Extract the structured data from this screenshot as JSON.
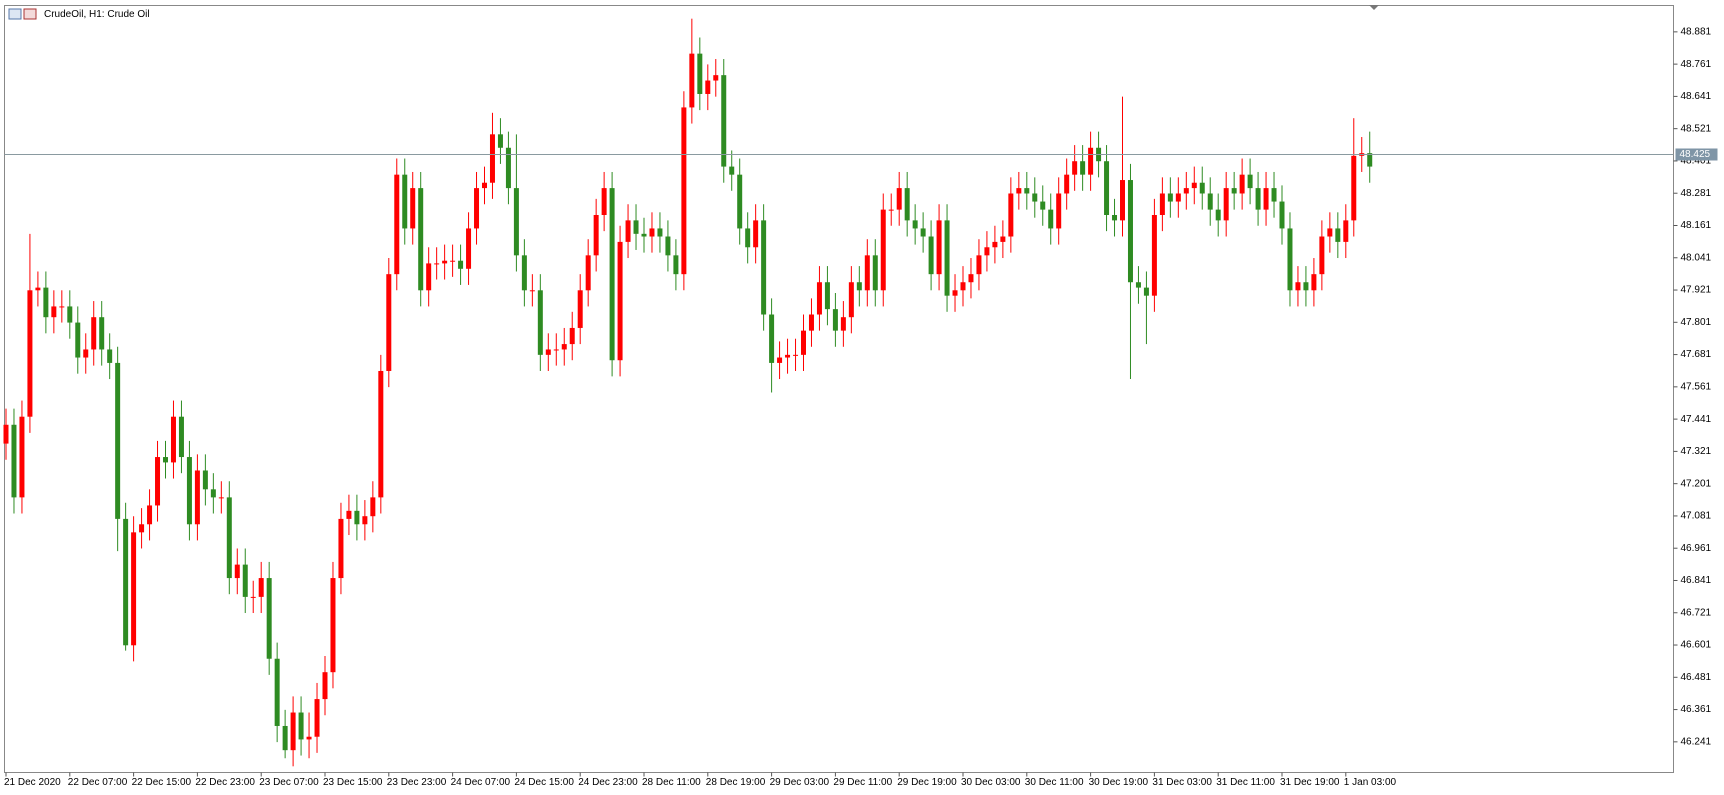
{
  "chart_data": {
    "type": "candlestick",
    "title": "CrudeOil, H1:  Crude Oil",
    "x": [
      "21 Dec 2020",
      null,
      null,
      null,
      null,
      null,
      null,
      null,
      "22 Dec 07:00",
      null,
      null,
      null,
      null,
      null,
      null,
      null,
      "22 Dec 15:00",
      null,
      null,
      null,
      null,
      null,
      null,
      null,
      "22 Dec 23:00",
      null,
      null,
      null,
      null,
      null,
      null,
      null,
      "23 Dec 07:00",
      null,
      null,
      null,
      null,
      null,
      null,
      null,
      "23 Dec 15:00",
      null,
      null,
      null,
      null,
      null,
      null,
      null,
      "23 Dec 23:00",
      null,
      null,
      null,
      null,
      null,
      null,
      null,
      "24 Dec 07:00",
      null,
      null,
      null,
      null,
      null,
      null,
      null,
      "24 Dec 15:00",
      null,
      null,
      null,
      null,
      null,
      null,
      null,
      "24 Dec 23:00",
      null,
      null,
      null,
      null,
      null,
      null,
      null,
      "28 Dec 11:00",
      null,
      null,
      null,
      null,
      null,
      null,
      null,
      "28 Dec 19:00",
      null,
      null,
      null,
      null,
      null,
      null,
      null,
      "29 Dec 03:00",
      null,
      null,
      null,
      null,
      null,
      null,
      null,
      "29 Dec 11:00",
      null,
      null,
      null,
      null,
      null,
      null,
      null,
      "29 Dec 19:00",
      null,
      null,
      null,
      null,
      null,
      null,
      null,
      "30 Dec 03:00",
      null,
      null,
      null,
      null,
      null,
      null,
      null,
      "30 Dec 11:00",
      null,
      null,
      null,
      null,
      null,
      null,
      null,
      "30 Dec 19:00",
      null,
      null,
      null,
      null,
      null,
      null,
      null,
      "31 Dec 03:00",
      null,
      null,
      null,
      null,
      null,
      null,
      null,
      "31 Dec 11:00",
      null,
      null,
      null,
      null,
      null,
      null,
      null,
      "31 Dec 19:00",
      null,
      null,
      null,
      null,
      null,
      null,
      null,
      "1 Jan 03:00",
      null,
      null,
      null
    ],
    "open": [
      47.35,
      47.42,
      47.15,
      47.45,
      47.92,
      47.93,
      47.82,
      47.86,
      47.86,
      47.8,
      47.67,
      47.7,
      47.82,
      47.7,
      47.65,
      47.07,
      46.6,
      47.02,
      47.05,
      47.12,
      47.3,
      47.28,
      47.45,
      47.3,
      47.05,
      47.25,
      47.18,
      47.15,
      47.15,
      46.85,
      46.9,
      46.78,
      46.78,
      46.85,
      46.55,
      46.3,
      46.21,
      46.35,
      46.25,
      46.26,
      46.4,
      46.5,
      46.85,
      47.07,
      47.1,
      47.05,
      47.08,
      47.15,
      47.62,
      47.98,
      48.35,
      48.15,
      48.3,
      47.92,
      48.02,
      48.02,
      48.03,
      48.03,
      48.0,
      48.15,
      48.3,
      48.32,
      48.5,
      48.45,
      48.3,
      48.05,
      47.92,
      47.92,
      47.68,
      47.7,
      47.7,
      47.72,
      47.78,
      47.92,
      48.05,
      48.2,
      48.3,
      47.66,
      48.1,
      48.18,
      48.13,
      48.12,
      48.15,
      48.12,
      48.05,
      47.98,
      48.6,
      48.8,
      48.65,
      48.7,
      48.72,
      48.38,
      48.35,
      48.15,
      48.08,
      48.18,
      47.83,
      47.65,
      47.67,
      47.68,
      47.68,
      47.77,
      47.83,
      47.95,
      47.85,
      47.77,
      47.82,
      47.95,
      47.92,
      48.05,
      47.92,
      48.22,
      48.22,
      48.3,
      48.18,
      48.15,
      48.12,
      47.98,
      48.18,
      47.9,
      47.92,
      47.95,
      47.98,
      48.05,
      48.08,
      48.1,
      48.12,
      48.28,
      48.3,
      48.28,
      48.25,
      48.22,
      48.15,
      48.28,
      48.35,
      48.4,
      48.35,
      48.45,
      48.4,
      48.2,
      48.18,
      48.33,
      47.95,
      47.93,
      47.9,
      48.2,
      48.28,
      48.25,
      48.28,
      48.3,
      48.32,
      48.28,
      48.22,
      48.18,
      48.3,
      48.28,
      48.35,
      48.3,
      48.22,
      48.3,
      48.25,
      48.15,
      47.92,
      47.95,
      47.92,
      47.98,
      48.12,
      48.15,
      48.1,
      48.18,
      48.42,
      48.43
    ],
    "high": [
      47.48,
      47.48,
      47.51,
      48.13,
      47.99,
      47.99,
      47.92,
      47.92,
      47.92,
      47.86,
      47.76,
      47.88,
      47.88,
      47.76,
      47.71,
      47.13,
      47.08,
      47.11,
      47.18,
      47.36,
      47.36,
      47.51,
      47.51,
      47.36,
      47.31,
      47.31,
      47.24,
      47.21,
      47.21,
      46.96,
      46.96,
      46.84,
      46.91,
      46.91,
      46.61,
      46.36,
      46.41,
      46.41,
      46.35,
      46.46,
      46.56,
      46.91,
      47.13,
      47.16,
      47.16,
      47.14,
      47.21,
      47.68,
      48.04,
      48.41,
      48.41,
      48.36,
      48.36,
      48.08,
      48.08,
      48.09,
      48.09,
      48.09,
      48.21,
      48.36,
      48.38,
      48.58,
      48.56,
      48.51,
      48.5,
      48.11,
      47.98,
      47.98,
      47.76,
      47.76,
      47.78,
      47.84,
      47.98,
      48.11,
      48.26,
      48.36,
      48.36,
      48.16,
      48.24,
      48.24,
      48.19,
      48.21,
      48.21,
      48.18,
      48.11,
      48.66,
      48.93,
      48.86,
      48.76,
      48.78,
      48.78,
      48.44,
      48.41,
      48.21,
      48.24,
      48.24,
      47.89,
      47.73,
      47.74,
      47.74,
      47.83,
      47.89,
      48.01,
      48.01,
      47.91,
      47.88,
      48.01,
      48.01,
      48.11,
      48.11,
      48.28,
      48.28,
      48.36,
      48.36,
      48.24,
      48.21,
      48.18,
      48.24,
      48.24,
      47.98,
      48.01,
      48.04,
      48.11,
      48.14,
      48.16,
      48.18,
      48.34,
      48.36,
      48.36,
      48.34,
      48.31,
      48.28,
      48.34,
      48.41,
      48.46,
      48.46,
      48.51,
      48.51,
      48.46,
      48.26,
      48.64,
      48.39,
      48.01,
      47.99,
      48.26,
      48.34,
      48.34,
      48.34,
      48.36,
      48.38,
      48.38,
      48.34,
      48.28,
      48.36,
      48.36,
      48.41,
      48.41,
      48.36,
      48.36,
      48.36,
      48.31,
      48.21,
      48.01,
      48.01,
      48.04,
      48.18,
      48.21,
      48.21,
      48.24,
      48.56,
      48.49,
      48.51
    ],
    "low": [
      47.29,
      47.09,
      47.09,
      47.39,
      47.86,
      47.76,
      47.76,
      47.8,
      47.74,
      47.61,
      47.61,
      47.64,
      47.64,
      47.59,
      46.95,
      46.58,
      46.54,
      46.96,
      46.99,
      47.06,
      47.22,
      47.22,
      47.24,
      46.99,
      46.99,
      47.12,
      47.09,
      47.09,
      46.79,
      46.79,
      46.72,
      46.72,
      46.72,
      46.49,
      46.24,
      46.18,
      46.15,
      46.19,
      46.18,
      46.2,
      46.34,
      46.44,
      46.79,
      47.01,
      46.99,
      46.99,
      47.02,
      47.09,
      47.56,
      47.92,
      48.09,
      48.09,
      47.86,
      47.86,
      47.96,
      47.96,
      47.97,
      47.94,
      47.94,
      48.09,
      48.24,
      48.26,
      48.39,
      48.24,
      47.99,
      47.86,
      47.86,
      47.62,
      47.62,
      47.64,
      47.64,
      47.66,
      47.72,
      47.86,
      47.99,
      48.14,
      47.6,
      47.6,
      48.04,
      48.07,
      48.06,
      48.06,
      48.06,
      47.99,
      47.92,
      47.92,
      48.54,
      48.59,
      48.59,
      48.64,
      48.32,
      48.29,
      48.09,
      48.02,
      48.02,
      47.77,
      47.54,
      47.59,
      47.61,
      47.62,
      47.62,
      47.71,
      47.77,
      47.79,
      47.71,
      47.71,
      47.76,
      47.86,
      47.86,
      47.86,
      47.86,
      48.16,
      48.16,
      48.12,
      48.09,
      48.06,
      47.92,
      47.92,
      47.84,
      47.84,
      47.86,
      47.89,
      47.92,
      47.99,
      48.02,
      48.04,
      48.06,
      48.22,
      48.22,
      48.19,
      48.16,
      48.09,
      48.09,
      48.22,
      48.29,
      48.29,
      48.29,
      48.34,
      48.14,
      48.12,
      48.12,
      47.59,
      47.87,
      47.72,
      47.84,
      48.14,
      48.19,
      48.19,
      48.22,
      48.24,
      48.22,
      48.16,
      48.12,
      48.12,
      48.22,
      48.22,
      48.24,
      48.16,
      48.16,
      48.19,
      48.09,
      47.86,
      47.86,
      47.86,
      47.86,
      47.92,
      48.06,
      48.04,
      48.04,
      48.12,
      48.36,
      48.32
    ],
    "close": [
      47.42,
      47.15,
      47.45,
      47.92,
      47.93,
      47.82,
      47.86,
      47.86,
      47.8,
      47.67,
      47.7,
      47.82,
      47.7,
      47.65,
      47.07,
      46.6,
      47.02,
      47.05,
      47.12,
      47.3,
      47.28,
      47.45,
      47.3,
      47.05,
      47.25,
      47.18,
      47.15,
      47.15,
      46.85,
      46.9,
      46.78,
      46.78,
      46.85,
      46.55,
      46.3,
      46.21,
      46.35,
      46.25,
      46.26,
      46.4,
      46.5,
      46.85,
      47.07,
      47.1,
      47.05,
      47.08,
      47.15,
      47.62,
      47.98,
      48.35,
      48.15,
      48.3,
      47.92,
      48.02,
      48.02,
      48.03,
      48.03,
      48.0,
      48.15,
      48.3,
      48.32,
      48.5,
      48.45,
      48.3,
      48.05,
      47.92,
      47.92,
      47.68,
      47.7,
      47.7,
      47.72,
      47.78,
      47.92,
      48.05,
      48.2,
      48.3,
      47.66,
      48.1,
      48.18,
      48.13,
      48.12,
      48.15,
      48.12,
      48.05,
      47.98,
      48.6,
      48.8,
      48.65,
      48.7,
      48.72,
      48.38,
      48.35,
      48.15,
      48.08,
      48.18,
      47.83,
      47.65,
      47.67,
      47.68,
      47.68,
      47.77,
      47.83,
      47.95,
      47.85,
      47.77,
      47.82,
      47.95,
      47.92,
      48.05,
      47.92,
      48.22,
      48.22,
      48.3,
      48.18,
      48.15,
      48.12,
      47.98,
      48.18,
      47.9,
      47.92,
      47.95,
      47.98,
      48.05,
      48.08,
      48.1,
      48.12,
      48.28,
      48.3,
      48.28,
      48.25,
      48.22,
      48.15,
      48.28,
      48.35,
      48.4,
      48.35,
      48.45,
      48.4,
      48.2,
      48.18,
      48.33,
      47.95,
      47.93,
      47.9,
      48.2,
      48.28,
      48.25,
      48.28,
      48.3,
      48.32,
      48.28,
      48.22,
      48.18,
      48.3,
      48.28,
      48.35,
      48.3,
      48.22,
      48.3,
      48.25,
      48.15,
      47.92,
      47.95,
      47.92,
      47.98,
      48.12,
      48.15,
      48.1,
      48.18,
      48.42,
      48.43,
      48.38
    ],
    "up_color": "#ff0000",
    "down_color": "#2e8b22",
    "current_price": 48.425,
    "ylim": [
      46.127,
      48.979
    ],
    "yticks": [
      48.881,
      48.761,
      48.641,
      48.521,
      48.401,
      48.281,
      48.161,
      48.041,
      47.921,
      47.801,
      47.681,
      47.561,
      47.441,
      47.321,
      47.201,
      47.081,
      46.961,
      46.841,
      46.721,
      46.601,
      46.481,
      46.361,
      46.241
    ]
  }
}
